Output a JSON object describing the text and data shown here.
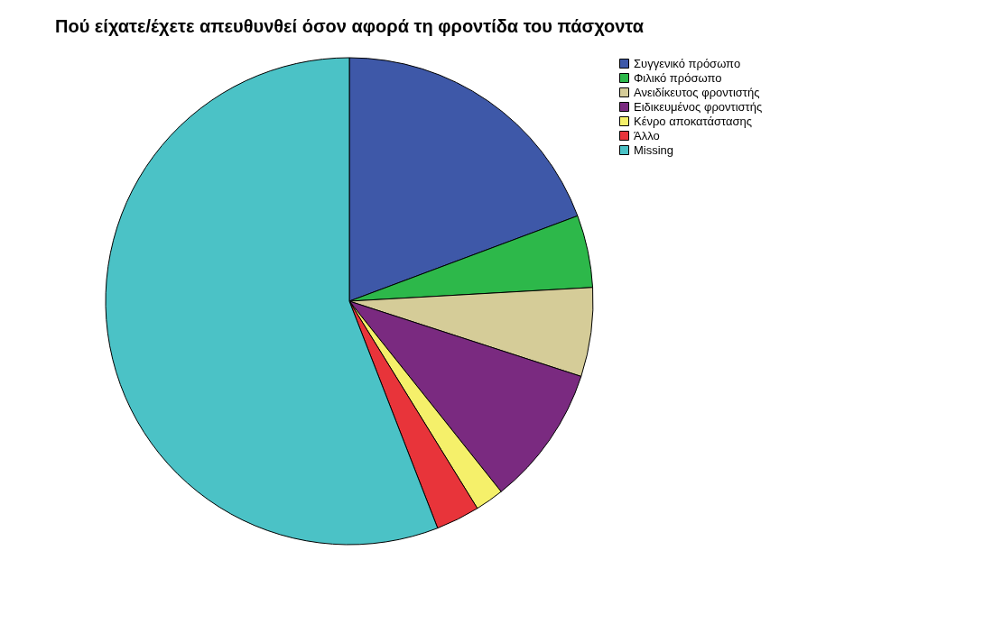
{
  "chart_data": {
    "type": "pie",
    "title": "Πού είχατε/έχετε απευθυνθεί όσον αφορά τη φροντίδα του πάσχοντα",
    "categories": [
      "Συγγενικό πρόσωπο",
      "Φιλικό πρόσωπο",
      "Ανειδίκευτος φροντιστής",
      "Ειδικευμένος φροντιστής",
      "Κένρο αποκατάστασης",
      "Άλλο",
      "Missing"
    ],
    "values": [
      19.3,
      4.8,
      5.9,
      9.3,
      1.9,
      2.9,
      55.9
    ],
    "colors": [
      "#3e58a8",
      "#2db84a",
      "#d5cc98",
      "#7a2a80",
      "#f5f06a",
      "#e8343a",
      "#4bc2c6"
    ],
    "legend": "top right"
  }
}
